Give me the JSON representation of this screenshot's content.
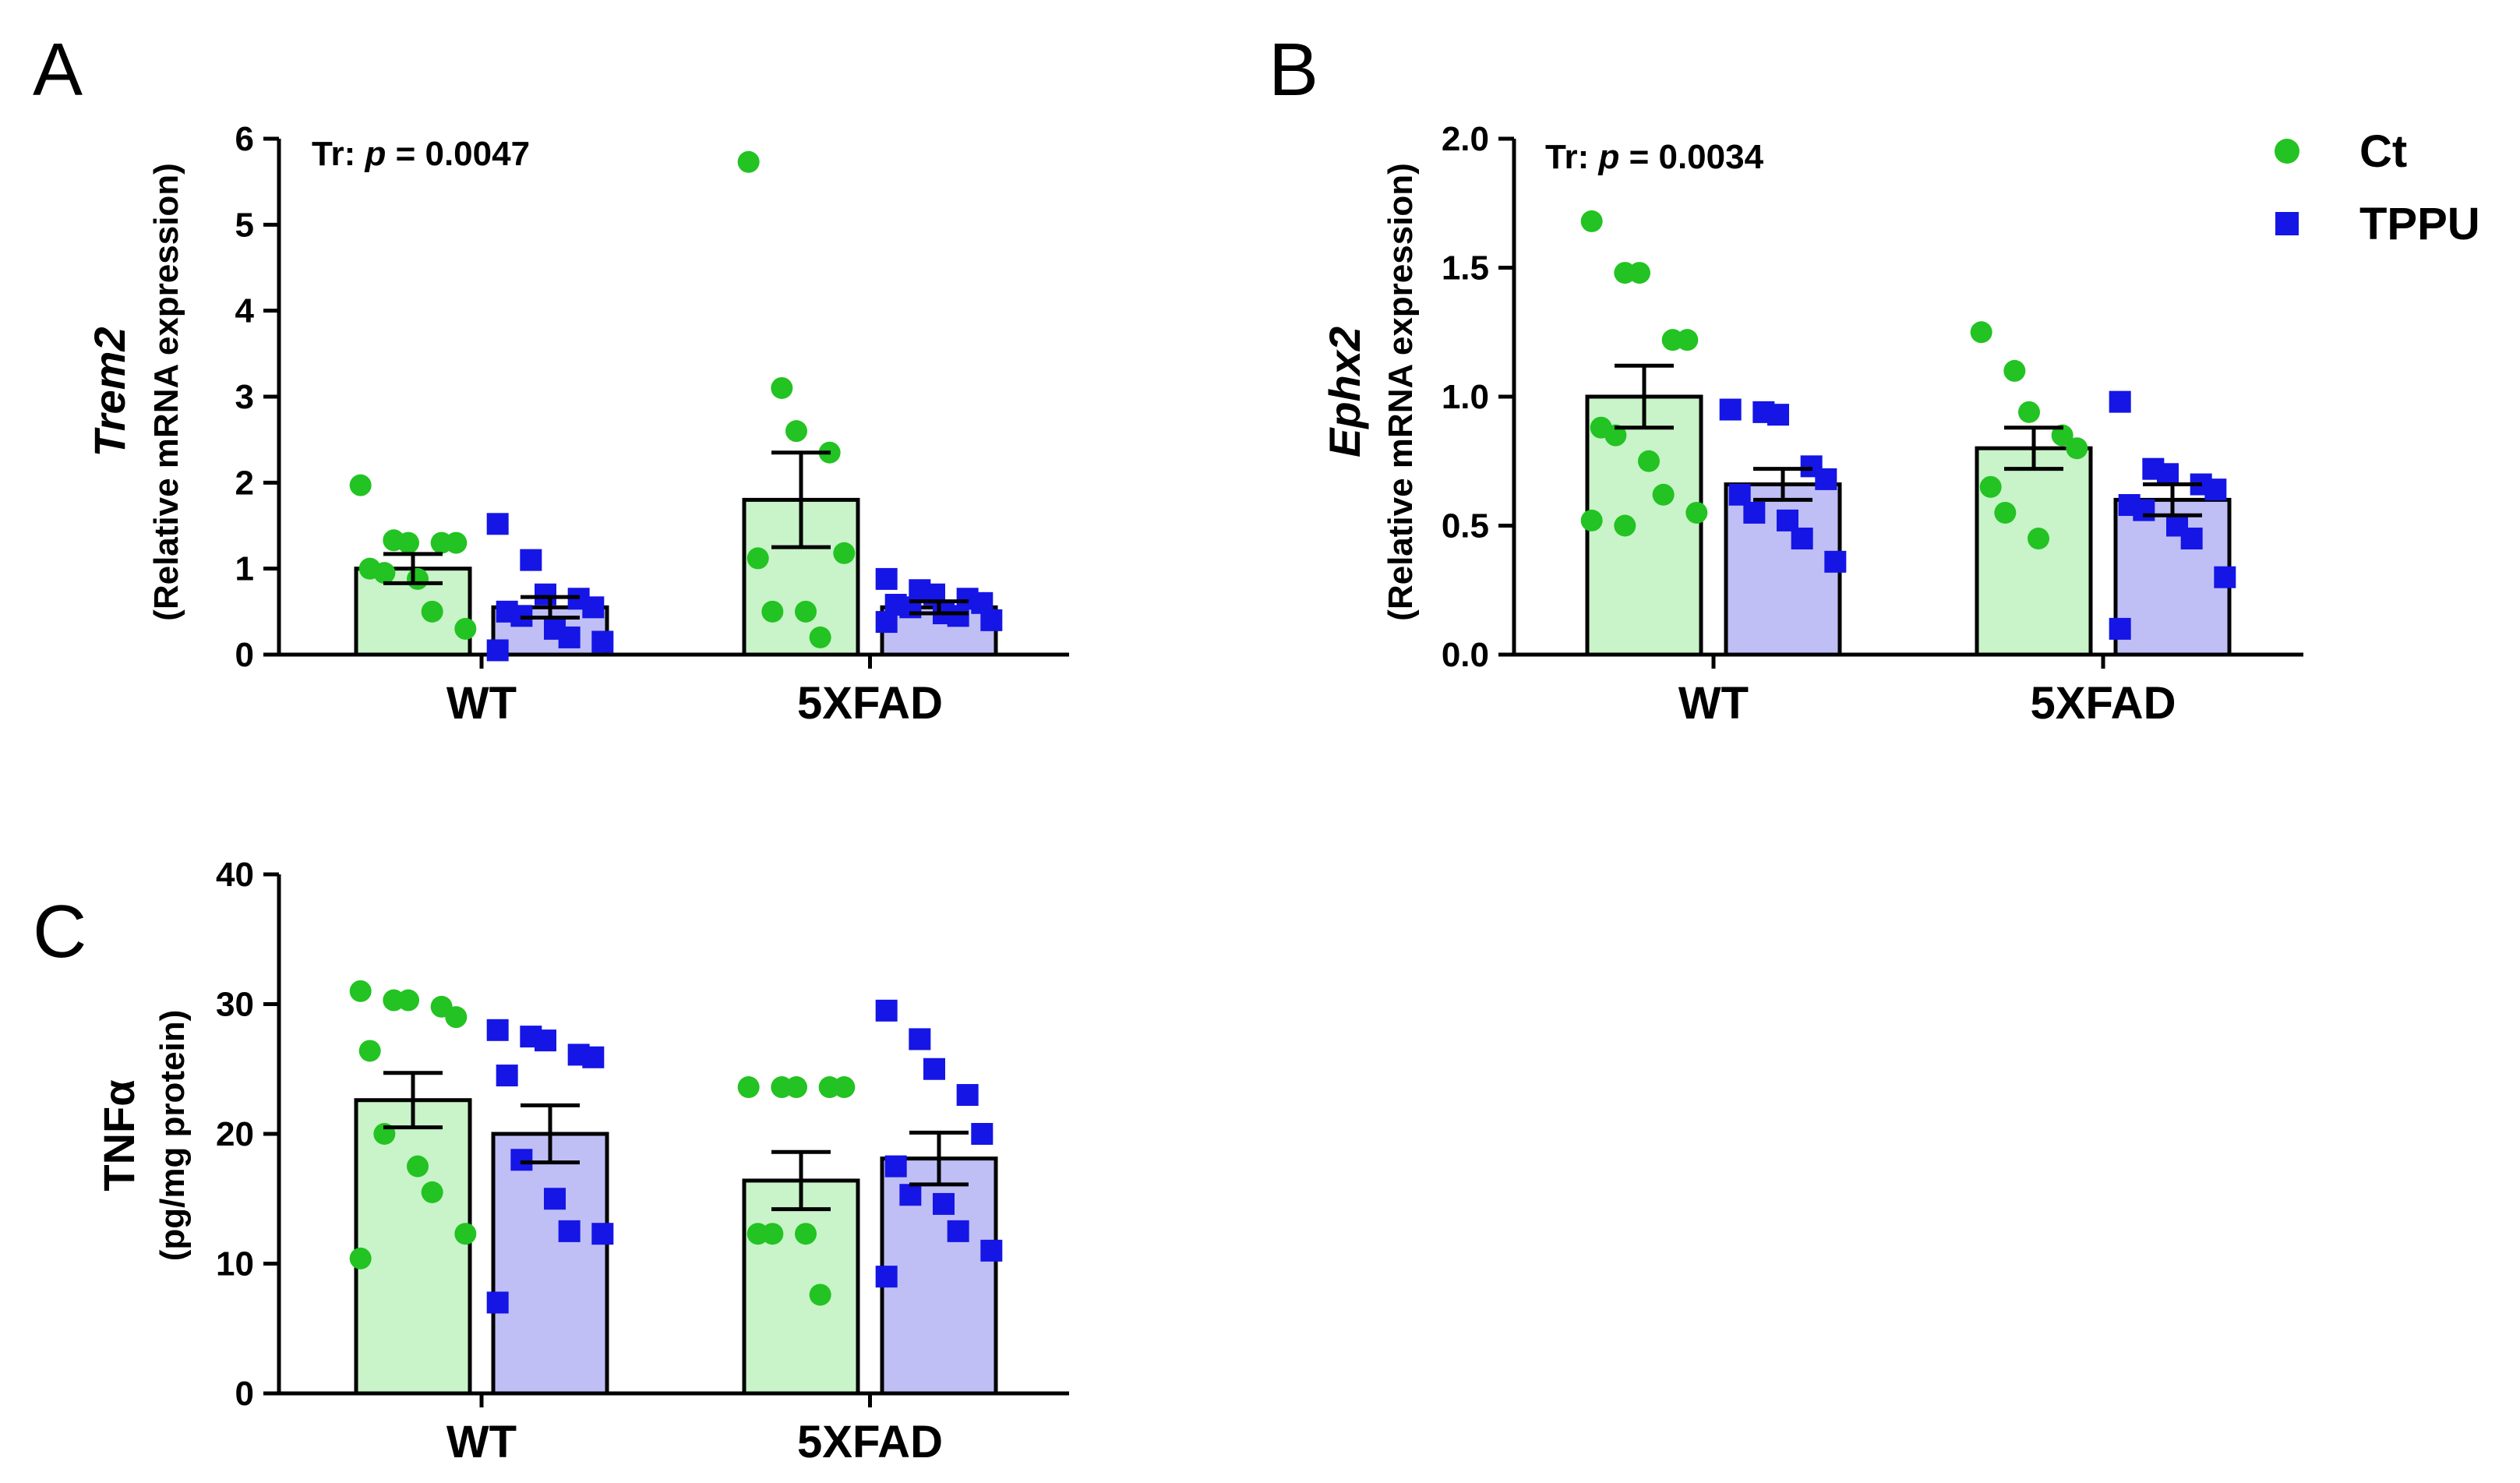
{
  "legend": {
    "items": [
      {
        "label": "Ct",
        "marker": "circle",
        "color": "#22c322"
      },
      {
        "label": "TPPU",
        "marker": "square",
        "color": "#1515e6"
      }
    ]
  },
  "colors": {
    "ct_bar": "#c9f3c9",
    "tppu_bar": "#bfbff6",
    "ct_point": "#22c322",
    "tppu_point": "#1515e6",
    "axis": "#000000"
  },
  "chart_data": [
    {
      "panel": "A",
      "type": "bar",
      "categories": [
        "WT",
        "5XFAD"
      ],
      "ylabel": "Trem2",
      "ylabel_sub": "(Relative mRNA expression)",
      "annotation_prefix": "Tr: ",
      "annotation_p": "p",
      "annotation_value": " = 0.0047",
      "ylim": [
        0,
        6
      ],
      "yticks": [
        0,
        1,
        2,
        3,
        4,
        5,
        6
      ],
      "series": [
        {
          "name": "Ct",
          "means": [
            1.0,
            1.8
          ],
          "sem": [
            0.17,
            0.55
          ],
          "points": [
            [
              1.97,
              1.33,
              1.3,
              1.3,
              1.3,
              1.0,
              0.95,
              0.88,
              0.5,
              0.3
            ],
            [
              5.73,
              3.1,
              2.6,
              2.35,
              1.18,
              1.12,
              0.5,
              0.5,
              0.2
            ]
          ]
        },
        {
          "name": "TPPU",
          "means": [
            0.55,
            0.55
          ],
          "sem": [
            0.12,
            0.07
          ],
          "points": [
            [
              1.52,
              1.1,
              0.7,
              0.65,
              0.55,
              0.5,
              0.45,
              0.3,
              0.2,
              0.15,
              0.05
            ],
            [
              0.88,
              0.75,
              0.7,
              0.65,
              0.6,
              0.58,
              0.55,
              0.48,
              0.45,
              0.4,
              0.38
            ]
          ]
        }
      ]
    },
    {
      "panel": "B",
      "type": "bar",
      "categories": [
        "WT",
        "5XFAD"
      ],
      "ylabel": "Ephx2",
      "ylabel_sub": "(Relative mRNA expression)",
      "annotation_prefix": "Tr: ",
      "annotation_p": "p",
      "annotation_value": " = 0.0034",
      "ylim": [
        0,
        2.0
      ],
      "yticks": [
        0.0,
        0.5,
        1.0,
        1.5,
        2.0
      ],
      "ytick_labels": [
        "0.0",
        "0.5",
        "1.0",
        "1.5",
        "2.0"
      ],
      "series": [
        {
          "name": "Ct",
          "means": [
            1.0,
            0.8
          ],
          "sem": [
            0.12,
            0.08
          ],
          "points": [
            [
              1.68,
              1.48,
              1.48,
              1.22,
              1.22,
              0.88,
              0.85,
              0.75,
              0.62,
              0.55,
              0.52,
              0.5
            ],
            [
              1.25,
              1.1,
              0.94,
              0.85,
              0.8,
              0.65,
              0.55,
              0.45
            ]
          ]
        },
        {
          "name": "TPPU",
          "means": [
            0.66,
            0.6
          ],
          "sem": [
            0.06,
            0.06
          ],
          "points": [
            [
              0.95,
              0.94,
              0.93,
              0.73,
              0.68,
              0.62,
              0.55,
              0.52,
              0.45,
              0.36
            ],
            [
              0.98,
              0.72,
              0.7,
              0.66,
              0.64,
              0.58,
              0.56,
              0.5,
              0.45,
              0.3,
              0.1
            ]
          ]
        }
      ]
    },
    {
      "panel": "C",
      "type": "bar",
      "categories": [
        "WT",
        "5XFAD"
      ],
      "ylabel": "TNFα",
      "ylabel_sub": "(pg/mg protein)",
      "ylim": [
        0,
        40
      ],
      "yticks": [
        0,
        10,
        20,
        30,
        40
      ],
      "series": [
        {
          "name": "Ct",
          "means": [
            22.6,
            16.4
          ],
          "sem": [
            2.1,
            2.2
          ],
          "points": [
            [
              31.0,
              30.3,
              30.3,
              29.8,
              29.0,
              26.4,
              20.0,
              17.5,
              15.5,
              12.3,
              10.4
            ],
            [
              23.6,
              23.6,
              23.6,
              23.6,
              23.6,
              12.3,
              12.3,
              12.3,
              7.6
            ]
          ]
        },
        {
          "name": "TPPU",
          "means": [
            20.0,
            18.1
          ],
          "sem": [
            2.2,
            2.0
          ],
          "points": [
            [
              28.0,
              27.5,
              27.2,
              26.1,
              25.9,
              24.5,
              18.0,
              15.0,
              12.5,
              12.3,
              7.0
            ],
            [
              29.5,
              27.3,
              25.0,
              23.0,
              20.0,
              17.5,
              15.3,
              14.6,
              12.5,
              11.0,
              9.0
            ]
          ]
        }
      ]
    }
  ]
}
